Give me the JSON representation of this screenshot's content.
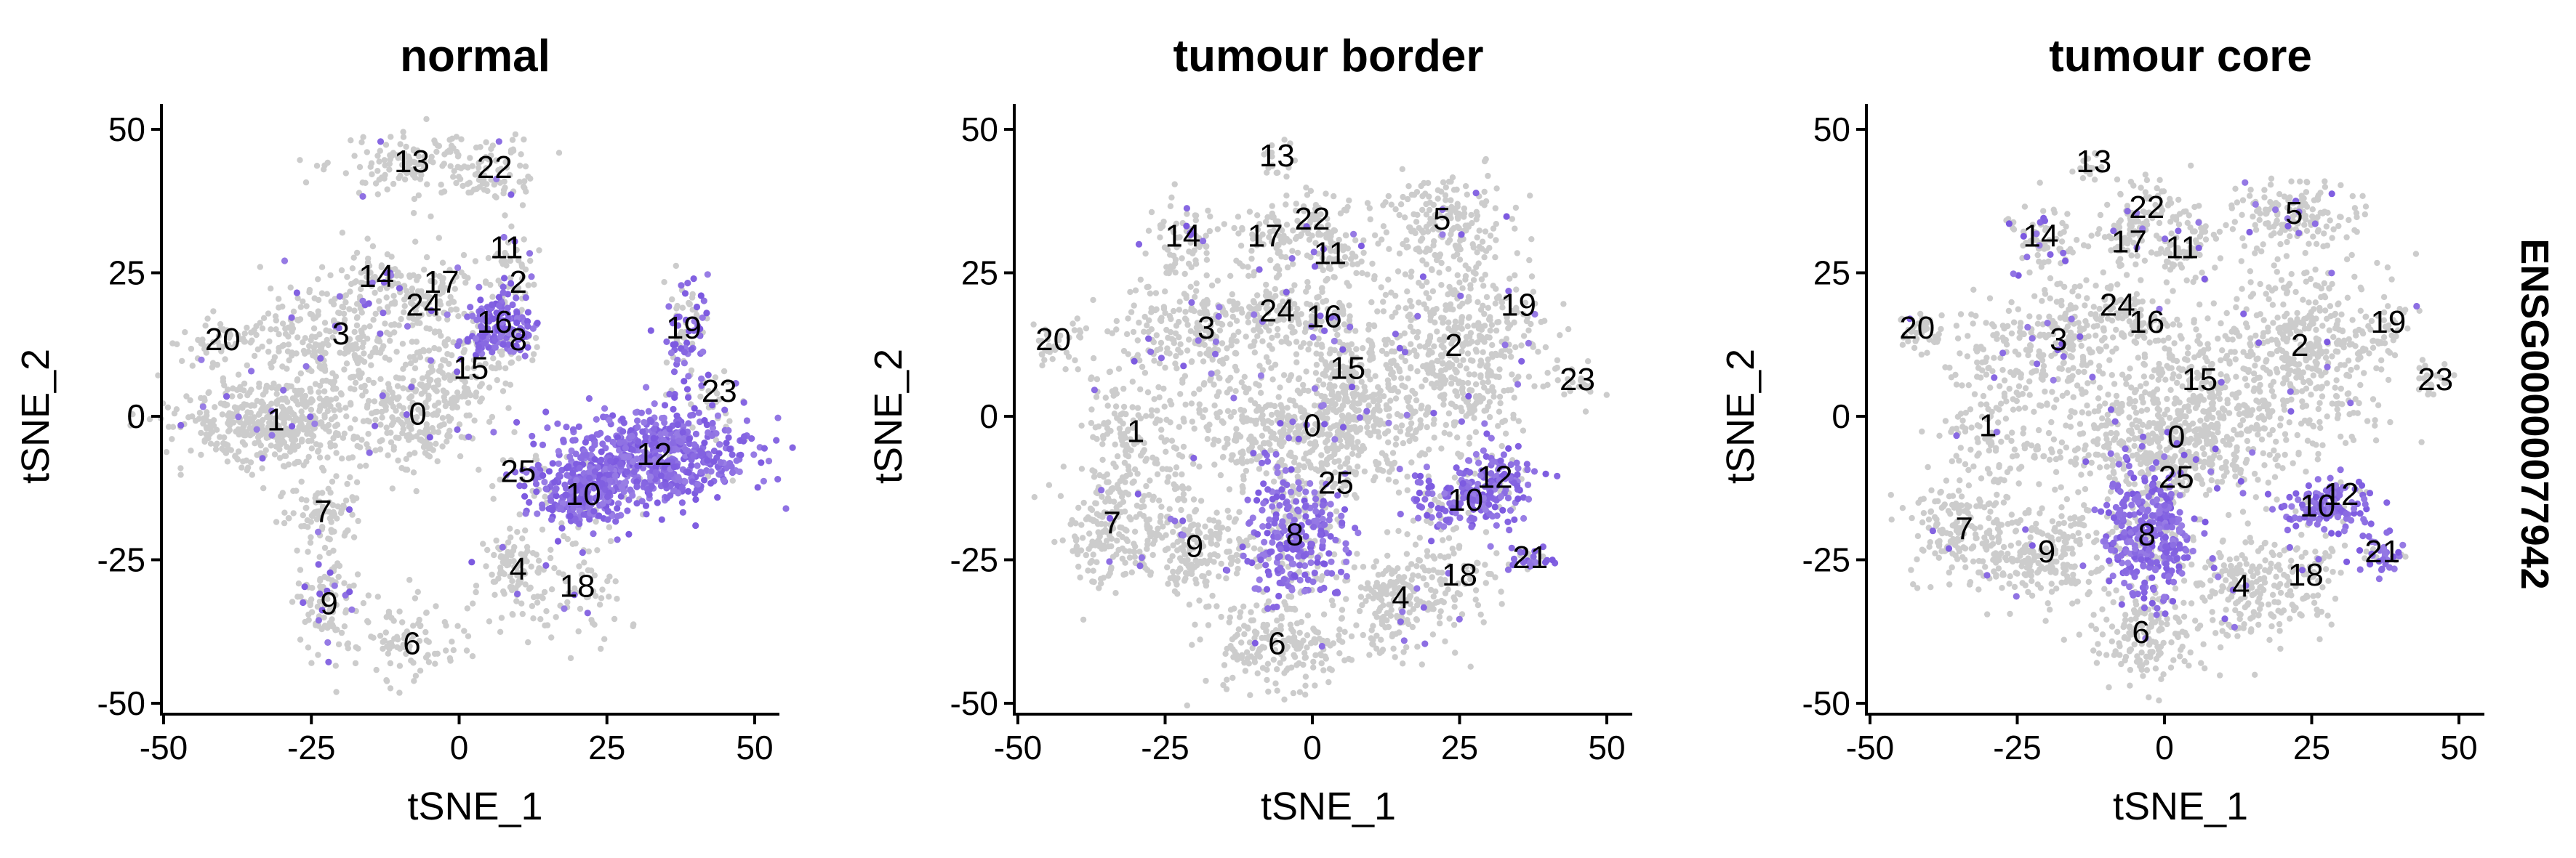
{
  "chart_data": [
    {
      "type": "scatter",
      "title": "normal",
      "xlabel": "tSNE_1",
      "ylabel": "tSNE_2",
      "xlim": [
        -52,
        55
      ],
      "ylim": [
        -52,
        55
      ],
      "xticks": [
        -50,
        -25,
        0,
        25,
        50
      ],
      "yticks": [
        -50,
        -25,
        0,
        25,
        50
      ],
      "xtick_labels": [
        "-50",
        "-25",
        "0",
        "25",
        "50"
      ],
      "ytick_labels": [
        "-50",
        "-25",
        "0",
        "25",
        "50"
      ],
      "colors": {
        "base": "#cccccc",
        "high": "#7b58e0"
      },
      "clusters": [
        {
          "label": "13",
          "x": -8,
          "y": 44,
          "sx": 7,
          "sy": 3,
          "n": 140,
          "expr": 0.02
        },
        {
          "label": "22",
          "x": 6,
          "y": 43,
          "sx": 4,
          "sy": 3,
          "n": 70,
          "expr": 0.02
        },
        {
          "label": "11",
          "x": 8,
          "y": 29,
          "sx": 2,
          "sy": 2,
          "n": 25,
          "expr": 0.05
        },
        {
          "label": "14",
          "x": -14,
          "y": 24,
          "sx": 3,
          "sy": 3,
          "n": 60,
          "expr": 0.05
        },
        {
          "label": "17",
          "x": -3,
          "y": 23,
          "sx": 3,
          "sy": 3,
          "n": 50,
          "expr": 0.05
        },
        {
          "label": "2",
          "x": 10,
          "y": 23,
          "sx": 2,
          "sy": 2,
          "n": 25,
          "expr": 0.2
        },
        {
          "label": "24",
          "x": -6,
          "y": 19,
          "sx": 3,
          "sy": 2,
          "n": 45,
          "expr": 0.05
        },
        {
          "label": "16",
          "x": 6,
          "y": 16,
          "sx": 3,
          "sy": 3,
          "n": 130,
          "expr": 0.9
        },
        {
          "label": "8",
          "x": 10,
          "y": 13,
          "sx": 2,
          "sy": 2,
          "n": 40,
          "expr": 0.7
        },
        {
          "label": "20",
          "x": -40,
          "y": 13,
          "sx": 4,
          "sy": 2,
          "n": 50,
          "expr": 0.02
        },
        {
          "label": "3",
          "x": -20,
          "y": 14,
          "sx": 8,
          "sy": 5,
          "n": 280,
          "expr": 0.03
        },
        {
          "label": "15",
          "x": 2,
          "y": 8,
          "sx": 4,
          "sy": 4,
          "n": 90,
          "expr": 0.05
        },
        {
          "label": "19",
          "x": 38,
          "y": 15,
          "sx": 2,
          "sy": 6,
          "n": 90,
          "expr": 0.6
        },
        {
          "label": "23",
          "x": 44,
          "y": 4,
          "sx": 3,
          "sy": 3,
          "n": 25,
          "expr": 0.02
        },
        {
          "label": "1",
          "x": -31,
          "y": -1,
          "sx": 8,
          "sy": 4,
          "n": 500,
          "expr": 0.03
        },
        {
          "label": "0",
          "x": -7,
          "y": 0,
          "sx": 5,
          "sy": 5,
          "n": 220,
          "expr": 0.03
        },
        {
          "label": "12",
          "x": 33,
          "y": -7,
          "sx": 8,
          "sy": 4,
          "n": 650,
          "expr": 0.95
        },
        {
          "label": "10",
          "x": 21,
          "y": -14,
          "sx": 4,
          "sy": 3,
          "n": 230,
          "expr": 0.95
        },
        {
          "label": "25",
          "x": 10,
          "y": -10,
          "sx": 3,
          "sy": 3,
          "n": 20,
          "expr": 0.02
        },
        {
          "label": "7",
          "x": -23,
          "y": -17,
          "sx": 3,
          "sy": 3,
          "n": 80,
          "expr": 0.03
        },
        {
          "label": "4",
          "x": 10,
          "y": -27,
          "sx": 3,
          "sy": 4,
          "n": 110,
          "expr": 0.03
        },
        {
          "label": "18",
          "x": 20,
          "y": -30,
          "sx": 4,
          "sy": 6,
          "n": 60,
          "expr": 0.05
        },
        {
          "label": "9",
          "x": -22,
          "y": -33,
          "sx": 3,
          "sy": 5,
          "n": 110,
          "expr": 0.15
        },
        {
          "label": "6",
          "x": -8,
          "y": -40,
          "sx": 5,
          "sy": 4,
          "n": 90,
          "expr": 0.02
        }
      ]
    },
    {
      "type": "scatter",
      "title": "tumour border",
      "xlabel": "tSNE_1",
      "ylabel": "tSNE_2",
      "xlim": [
        -52,
        55
      ],
      "ylim": [
        -52,
        55
      ],
      "xticks": [
        -50,
        -25,
        0,
        25,
        50
      ],
      "yticks": [
        -50,
        -25,
        0,
        25,
        50
      ],
      "xtick_labels": [
        "-50",
        "-25",
        "0",
        "25",
        "50"
      ],
      "ytick_labels": [
        "-50",
        "-25",
        "0",
        "25",
        "50"
      ],
      "colors": {
        "base": "#cccccc",
        "high": "#7b58e0"
      },
      "clusters": [
        {
          "label": "13",
          "x": -6,
          "y": 45,
          "sx": 2,
          "sy": 2,
          "n": 15,
          "expr": 0.02
        },
        {
          "label": "22",
          "x": 0,
          "y": 34,
          "sx": 4,
          "sy": 3,
          "n": 60,
          "expr": 0.03
        },
        {
          "label": "5",
          "x": 22,
          "y": 34,
          "sx": 6,
          "sy": 4,
          "n": 180,
          "expr": 0.05
        },
        {
          "label": "14",
          "x": -22,
          "y": 31,
          "sx": 3,
          "sy": 3,
          "n": 70,
          "expr": 0.15
        },
        {
          "label": "17",
          "x": -8,
          "y": 31,
          "sx": 3,
          "sy": 3,
          "n": 60,
          "expr": 0.05
        },
        {
          "label": "11",
          "x": 3,
          "y": 28,
          "sx": 3,
          "sy": 3,
          "n": 70,
          "expr": 0.05
        },
        {
          "label": "24",
          "x": -6,
          "y": 18,
          "sx": 3,
          "sy": 2,
          "n": 40,
          "expr": 0.05
        },
        {
          "label": "16",
          "x": 2,
          "y": 17,
          "sx": 3,
          "sy": 2,
          "n": 50,
          "expr": 0.15
        },
        {
          "label": "19",
          "x": 35,
          "y": 19,
          "sx": 3,
          "sy": 3,
          "n": 25,
          "expr": 0.02
        },
        {
          "label": "20",
          "x": -44,
          "y": 13,
          "sx": 3,
          "sy": 2,
          "n": 35,
          "expr": 0.02
        },
        {
          "label": "3",
          "x": -18,
          "y": 15,
          "sx": 9,
          "sy": 5,
          "n": 300,
          "expr": 0.03
        },
        {
          "label": "2",
          "x": 24,
          "y": 12,
          "sx": 7,
          "sy": 8,
          "n": 450,
          "expr": 0.03
        },
        {
          "label": "15",
          "x": 6,
          "y": 8,
          "sx": 5,
          "sy": 4,
          "n": 130,
          "expr": 0.03
        },
        {
          "label": "23",
          "x": 45,
          "y": 6,
          "sx": 2,
          "sy": 2,
          "n": 20,
          "expr": 0.02
        },
        {
          "label": "1",
          "x": -30,
          "y": -3,
          "sx": 5,
          "sy": 5,
          "n": 140,
          "expr": 0.02
        },
        {
          "label": "0",
          "x": 0,
          "y": -2,
          "sx": 10,
          "sy": 5,
          "n": 550,
          "expr": 0.03
        },
        {
          "label": "25",
          "x": 4,
          "y": -12,
          "sx": 2,
          "sy": 2,
          "n": 15,
          "expr": 0.02
        },
        {
          "label": "12",
          "x": 31,
          "y": -11,
          "sx": 3,
          "sy": 3,
          "n": 90,
          "expr": 0.85
        },
        {
          "label": "10",
          "x": 26,
          "y": -15,
          "sx": 5,
          "sy": 3,
          "n": 150,
          "expr": 0.85
        },
        {
          "label": "7",
          "x": -34,
          "y": -19,
          "sx": 5,
          "sy": 5,
          "n": 200,
          "expr": 0.02
        },
        {
          "label": "9",
          "x": -20,
          "y": -23,
          "sx": 5,
          "sy": 5,
          "n": 200,
          "expr": 0.02
        },
        {
          "label": "8",
          "x": -3,
          "y": -21,
          "sx": 4,
          "sy": 6,
          "n": 350,
          "expr": 0.7
        },
        {
          "label": "21",
          "x": 37,
          "y": -25,
          "sx": 2,
          "sy": 1,
          "n": 30,
          "expr": 0.8
        },
        {
          "label": "18",
          "x": 25,
          "y": -28,
          "sx": 4,
          "sy": 4,
          "n": 60,
          "expr": 0.03
        },
        {
          "label": "4",
          "x": 15,
          "y": -32,
          "sx": 5,
          "sy": 5,
          "n": 200,
          "expr": 0.03
        },
        {
          "label": "6",
          "x": -6,
          "y": -40,
          "sx": 6,
          "sy": 4,
          "n": 200,
          "expr": 0.02
        }
      ]
    },
    {
      "type": "scatter",
      "title": "tumour core",
      "xlabel": "tSNE_1",
      "ylabel": "tSNE_2",
      "xlim": [
        -52,
        55
      ],
      "ylim": [
        -52,
        55
      ],
      "xticks": [
        -50,
        -25,
        0,
        25,
        50
      ],
      "yticks": [
        -50,
        -25,
        0,
        25,
        50
      ],
      "xtick_labels": [
        "-50",
        "-25",
        "0",
        "25",
        "50"
      ],
      "ytick_labels": [
        "-50",
        "-25",
        "0",
        "25",
        "50"
      ],
      "strip_label": "ENSG00000077942",
      "colors": {
        "base": "#cccccc",
        "high": "#7b58e0"
      },
      "clusters": [
        {
          "label": "13",
          "x": -12,
          "y": 44,
          "sx": 2,
          "sy": 2,
          "n": 15,
          "expr": 0.02
        },
        {
          "label": "22",
          "x": -3,
          "y": 36,
          "sx": 4,
          "sy": 3,
          "n": 60,
          "expr": 0.03
        },
        {
          "label": "5",
          "x": 22,
          "y": 35,
          "sx": 6,
          "sy": 3,
          "n": 150,
          "expr": 0.05
        },
        {
          "label": "14",
          "x": -21,
          "y": 31,
          "sx": 3,
          "sy": 3,
          "n": 70,
          "expr": 0.2
        },
        {
          "label": "17",
          "x": -6,
          "y": 30,
          "sx": 4,
          "sy": 3,
          "n": 70,
          "expr": 0.03
        },
        {
          "label": "11",
          "x": 3,
          "y": 29,
          "sx": 3,
          "sy": 3,
          "n": 70,
          "expr": 0.03
        },
        {
          "label": "24",
          "x": -8,
          "y": 19,
          "sx": 3,
          "sy": 2,
          "n": 35,
          "expr": 0.05
        },
        {
          "label": "16",
          "x": -3,
          "y": 16,
          "sx": 2,
          "sy": 2,
          "n": 35,
          "expr": 0.05
        },
        {
          "label": "19",
          "x": 38,
          "y": 16,
          "sx": 2,
          "sy": 3,
          "n": 25,
          "expr": 0.1
        },
        {
          "label": "20",
          "x": -42,
          "y": 15,
          "sx": 3,
          "sy": 2,
          "n": 35,
          "expr": 0.02
        },
        {
          "label": "3",
          "x": -18,
          "y": 13,
          "sx": 9,
          "sy": 5,
          "n": 300,
          "expr": 0.03
        },
        {
          "label": "2",
          "x": 23,
          "y": 12,
          "sx": 7,
          "sy": 8,
          "n": 450,
          "expr": 0.03
        },
        {
          "label": "15",
          "x": 6,
          "y": 6,
          "sx": 5,
          "sy": 4,
          "n": 120,
          "expr": 0.03
        },
        {
          "label": "23",
          "x": 46,
          "y": 6,
          "sx": 2,
          "sy": 2,
          "n": 20,
          "expr": 0.02
        },
        {
          "label": "1",
          "x": -30,
          "y": -2,
          "sx": 5,
          "sy": 5,
          "n": 110,
          "expr": 0.02
        },
        {
          "label": "0",
          "x": 2,
          "y": -4,
          "sx": 10,
          "sy": 5,
          "n": 550,
          "expr": 0.03
        },
        {
          "label": "25",
          "x": 2,
          "y": -11,
          "sx": 2,
          "sy": 2,
          "n": 15,
          "expr": 0.02
        },
        {
          "label": "12",
          "x": 30,
          "y": -14,
          "sx": 3,
          "sy": 2,
          "n": 50,
          "expr": 0.85
        },
        {
          "label": "10",
          "x": 26,
          "y": -16,
          "sx": 4,
          "sy": 2,
          "n": 80,
          "expr": 0.85
        },
        {
          "label": "7",
          "x": -34,
          "y": -20,
          "sx": 5,
          "sy": 5,
          "n": 200,
          "expr": 0.02
        },
        {
          "label": "9",
          "x": -20,
          "y": -24,
          "sx": 5,
          "sy": 5,
          "n": 200,
          "expr": 0.02
        },
        {
          "label": "8",
          "x": -3,
          "y": -21,
          "sx": 4,
          "sy": 6,
          "n": 400,
          "expr": 0.8
        },
        {
          "label": "21",
          "x": 37,
          "y": -24,
          "sx": 2,
          "sy": 2,
          "n": 40,
          "expr": 0.8
        },
        {
          "label": "18",
          "x": 24,
          "y": -28,
          "sx": 4,
          "sy": 4,
          "n": 60,
          "expr": 0.03
        },
        {
          "label": "4",
          "x": 13,
          "y": -30,
          "sx": 5,
          "sy": 5,
          "n": 200,
          "expr": 0.03
        },
        {
          "label": "6",
          "x": -4,
          "y": -38,
          "sx": 5,
          "sy": 4,
          "n": 150,
          "expr": 0.02
        }
      ]
    }
  ]
}
